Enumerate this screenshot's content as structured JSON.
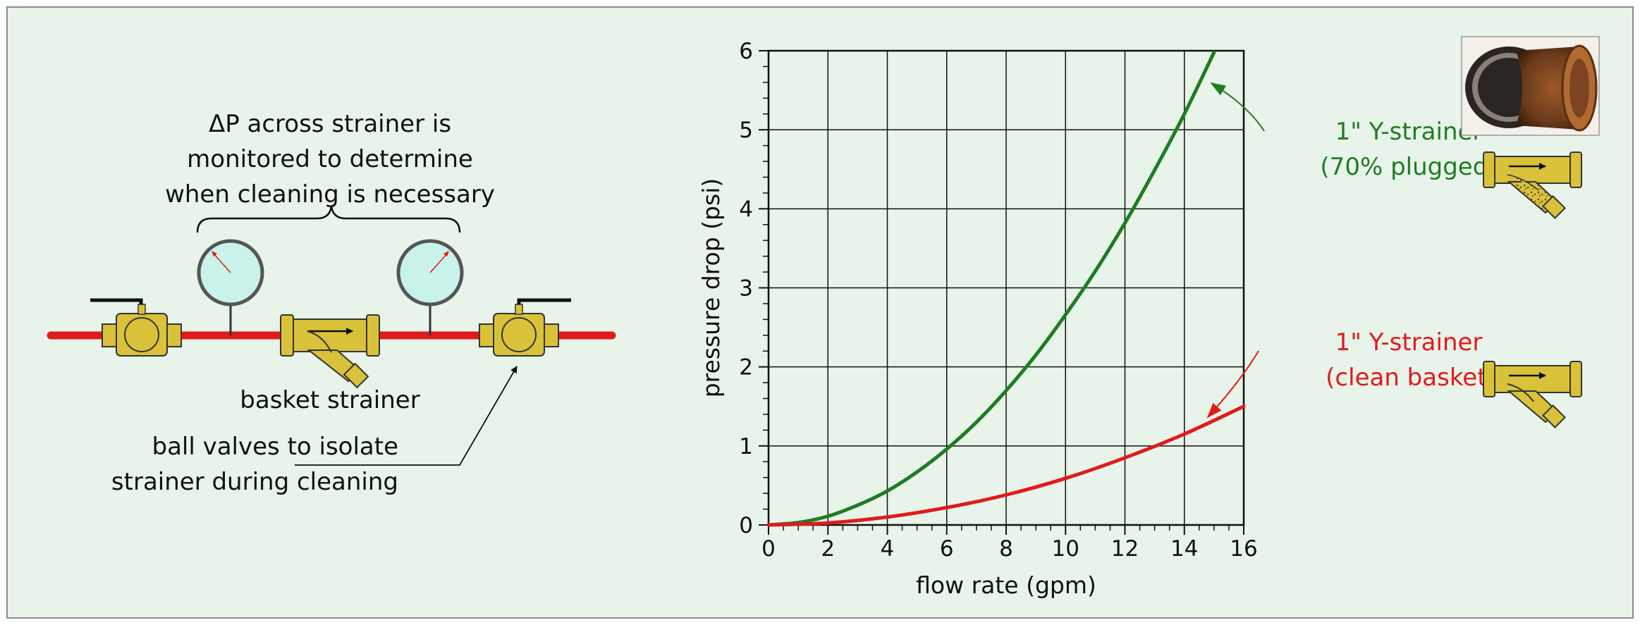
{
  "diagram": {
    "caption_lines": [
      "ΔP across strainer is",
      "monitored to determine",
      "when cleaning is necessary"
    ],
    "strainer_label": "basket strainer",
    "valves_label_lines": [
      "ball valves to isolate",
      "strainer during cleaning"
    ]
  },
  "colors": {
    "background": "#e8f3ea",
    "pipe": "#e01b1b",
    "brass": "#d9c23a",
    "gauge_face": "#c9f3ea",
    "plugged_series": "#1e7d22",
    "clean_series": "#e01b1b"
  },
  "chart_data": {
    "type": "line",
    "title": "",
    "xlabel": "flow rate (gpm)",
    "ylabel": "pressure drop (psi)",
    "xlim": [
      0,
      16
    ],
    "ylim": [
      0,
      6
    ],
    "xticks": [
      "0",
      "2",
      "4",
      "6",
      "8",
      "10",
      "12",
      "14",
      "16"
    ],
    "yticks": [
      "0",
      "1",
      "2",
      "3",
      "4",
      "5",
      "6"
    ],
    "grid": true,
    "series": [
      {
        "name": "1\" Y-strainer (70% plugged)",
        "label_lines": [
          "1\" Y-strainer",
          "(70% plugged)"
        ],
        "color": "#1e7d22",
        "x": [
          0,
          1,
          2,
          3,
          4,
          5,
          6,
          7,
          8,
          9,
          10,
          11,
          12,
          13,
          14,
          15
        ],
        "y": [
          0,
          0.03,
          0.11,
          0.25,
          0.43,
          0.67,
          0.96,
          1.3,
          1.7,
          2.15,
          2.66,
          3.21,
          3.82,
          4.49,
          5.2,
          5.98
        ]
      },
      {
        "name": "1\" Y-strainer (clean basket)",
        "label_lines": [
          "1\" Y-strainer",
          "(clean basket)"
        ],
        "color": "#e01b1b",
        "x": [
          0,
          2,
          4,
          6,
          8,
          10,
          12,
          14,
          16
        ],
        "y": [
          0,
          0.025,
          0.1,
          0.22,
          0.38,
          0.59,
          0.85,
          1.15,
          1.5
        ]
      }
    ]
  }
}
